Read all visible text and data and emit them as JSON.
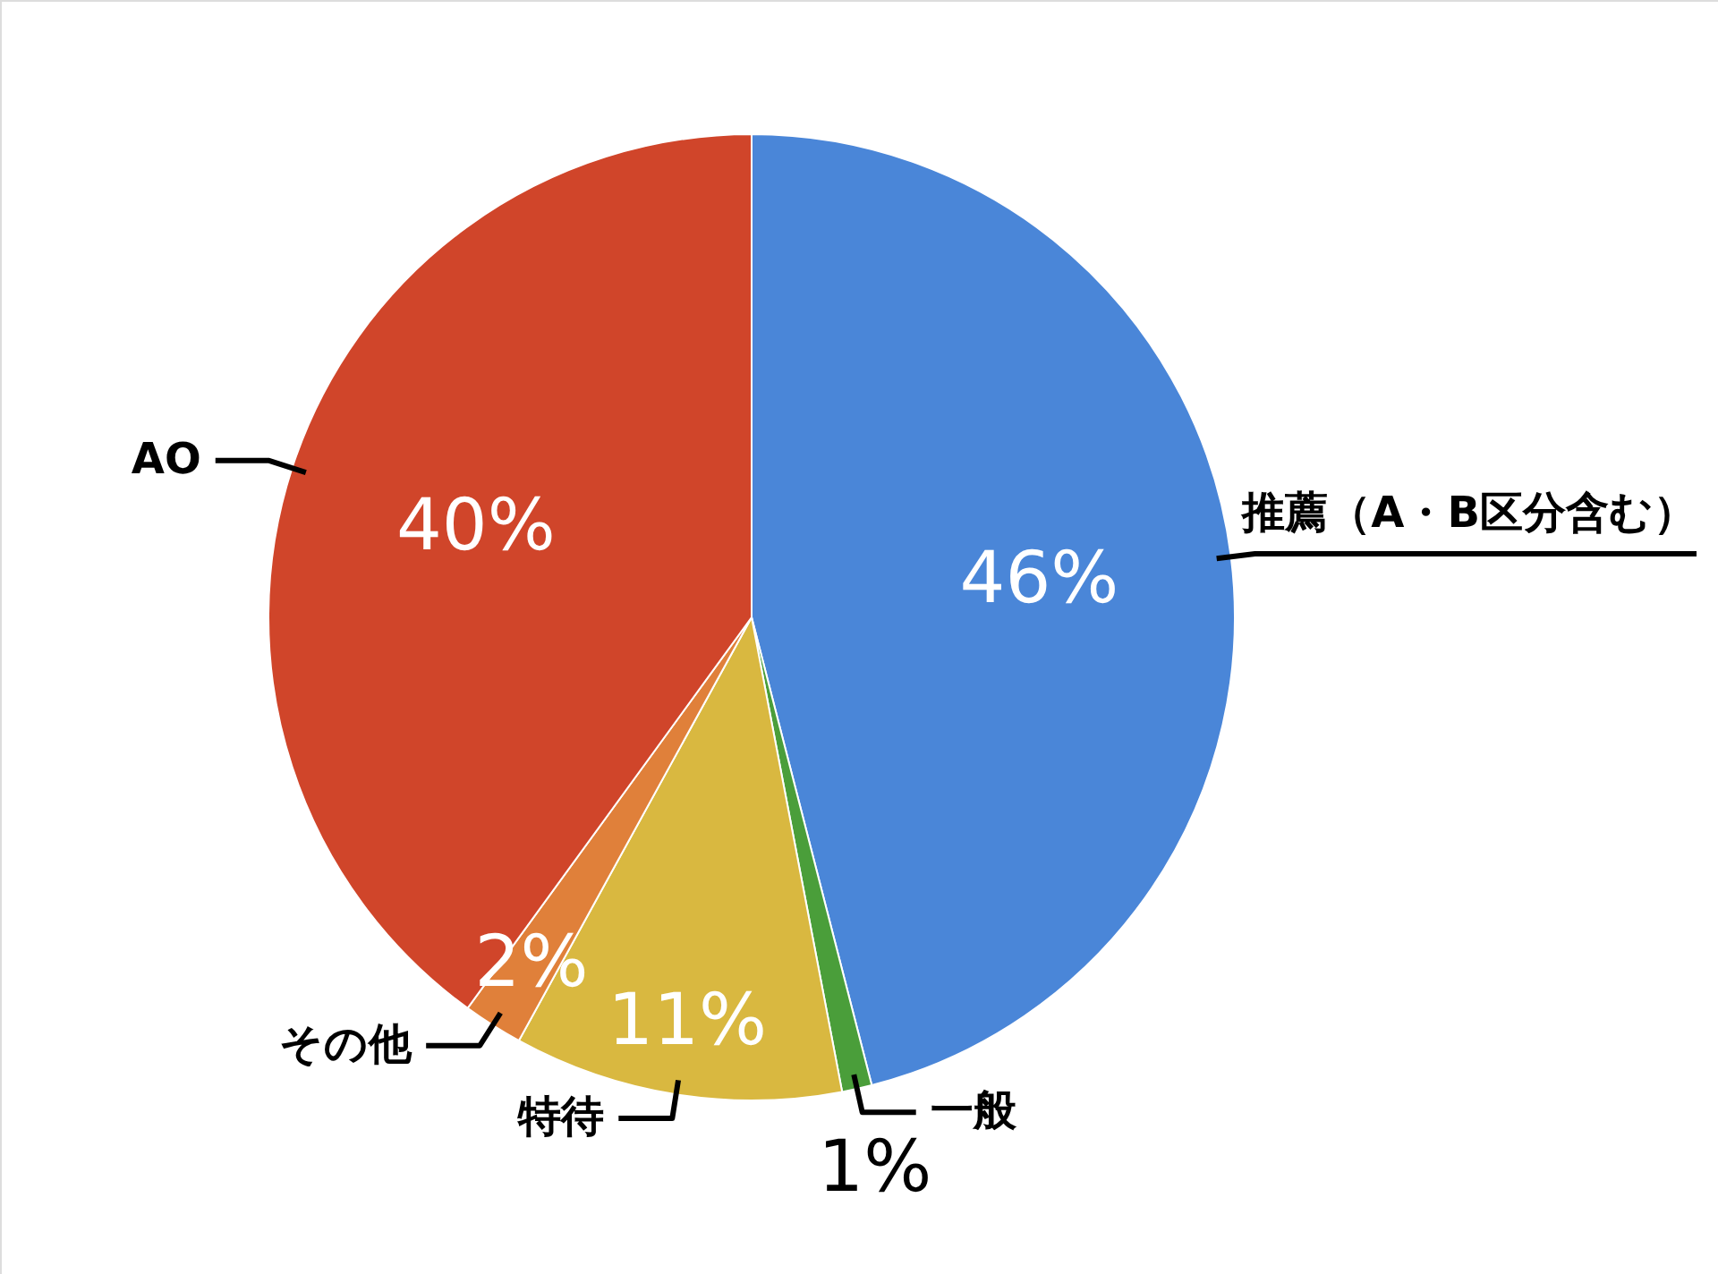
{
  "chart_data": {
    "type": "pie",
    "categories": [
      "推薦（A・B区分含む）",
      "一般",
      "特待",
      "その他",
      "AO"
    ],
    "values": [
      46,
      1,
      11,
      2,
      40
    ],
    "colors": [
      "#4a86d8",
      "#4a9e3a",
      "#d9b840",
      "#e0803a",
      "#d0452a"
    ],
    "value_labels": [
      "46%",
      "1%",
      "11%",
      "2%",
      "40%"
    ]
  }
}
